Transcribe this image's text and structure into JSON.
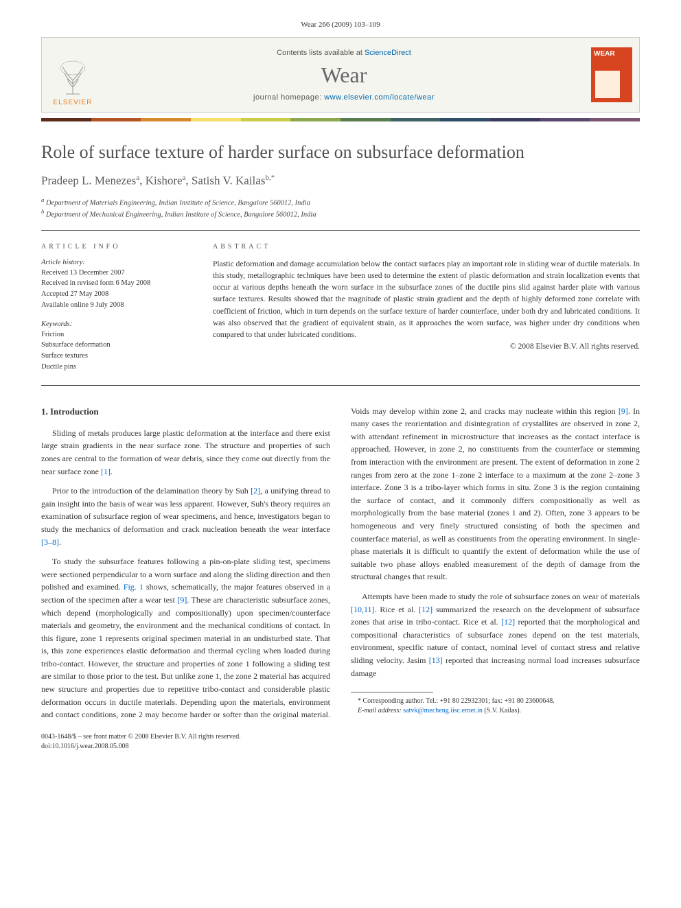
{
  "header": {
    "citation": "Wear 266 (2009) 103–109"
  },
  "banner": {
    "publisher": "ELSEVIER",
    "contents_prefix": "Contents lists available at ",
    "contents_link": "ScienceDirect",
    "journal": "Wear",
    "homepage_prefix": "journal homepage: ",
    "homepage_url": "www.elsevier.com/locate/wear",
    "cover_label": "WEAR"
  },
  "colorbar": [
    "#5b2c1a",
    "#b45523",
    "#d68a2e",
    "#f4e06a",
    "#cacc4a",
    "#8ea84e",
    "#5a7d4f",
    "#406266",
    "#334d66",
    "#3a3d5c",
    "#5a4a6d",
    "#7a5571"
  ],
  "article": {
    "title": "Role of surface texture of harder surface on subsurface deformation",
    "authors_html": "Pradeep L. Menezes<sup>a</sup>, Kishore<sup>a</sup>, Satish V. Kailas<sup>b,*</sup>",
    "affiliations": [
      "a Department of Materials Engineering, Indian Institute of Science, Bangalore 560012, India",
      "b Department of Mechanical Engineering, Indian Institute of Science, Bangalore 560012, India"
    ]
  },
  "info": {
    "label": "ARTICLE INFO",
    "history_title": "Article history:",
    "history": [
      "Received 13 December 2007",
      "Received in revised form 6 May 2008",
      "Accepted 27 May 2008",
      "Available online 9 July 2008"
    ],
    "keywords_title": "Keywords:",
    "keywords": [
      "Friction",
      "Subsurface deformation",
      "Surface textures",
      "Ductile pins"
    ]
  },
  "abstract": {
    "label": "ABSTRACT",
    "text": "Plastic deformation and damage accumulation below the contact surfaces play an important role in sliding wear of ductile materials. In this study, metallographic techniques have been used to determine the extent of plastic deformation and strain localization events that occur at various depths beneath the worn surface in the subsurface zones of the ductile pins slid against harder plate with various surface textures. Results showed that the magnitude of plastic strain gradient and the depth of highly deformed zone correlate with coefficient of friction, which in turn depends on the surface texture of harder counterface, under both dry and lubricated conditions. It was also observed that the gradient of equivalent strain, as it approaches the worn surface, was higher under dry conditions when compared to that under lubricated conditions.",
    "copyright": "© 2008 Elsevier B.V. All rights reserved."
  },
  "body": {
    "section1_title": "1. Introduction",
    "p1": "Sliding of metals produces large plastic deformation at the interface and there exist large strain gradients in the near surface zone. The structure and properties of such zones are central to the formation of wear debris, since they come out directly from the near surface zone ",
    "p1_ref": "[1]",
    "p1_suffix": ".",
    "p2_a": "Prior to the introduction of the delamination theory by Suh ",
    "p2_ref1": "[2]",
    "p2_b": ", a unifying thread to gain insight into the basis of wear was less apparent. However, Suh's theory requires an examination of subsurface region of wear specimens, and hence, investigators began to study the mechanics of deformation and crack nucleation beneath the wear interface ",
    "p2_ref2": "[3–8]",
    "p2_c": ".",
    "p3_a": "To study the subsurface features following a pin-on-plate sliding test, specimens were sectioned perpendicular to a worn surface and along the sliding direction and then polished and examined. ",
    "p3_fig": "Fig. 1",
    "p3_b": " shows, schematically, the major features observed in a section of the specimen after a wear test ",
    "p3_ref1": "[9]",
    "p3_c": ". These are characteristic subsurface zones, which depend (morphologically and compositionally) upon specimen/counterface materials and geometry, the environment and the mechanical conditions of contact. In this figure, zone 1 represents original specimen material in an undisturbed state. That is, this zone experiences elastic deformation and thermal cycling when loaded during tribo-contact. However, the structure and properties of zone 1 following a sliding test are similar to those prior to the test. But unlike zone 1, the zone 2 material has acquired new structure and properties due to repetitive tribo-contact and considerable plastic deformation occurs in ductile materials. Depending upon the materials, environment and contact conditions, zone 2 may become harder or softer than the original material. Voids may develop within zone 2, and cracks may nucleate within this region ",
    "p3_ref2": "[9]",
    "p3_d": ". In many cases the reorientation and disintegration of crystallites are observed in zone 2, with attendant refinement in microstructure that increases as the contact interface is approached. However, in zone 2, no constituents from the counterface or stemming from interaction with the environment are present. The extent of deformation in zone 2 ranges from zero at the zone 1–zone 2 interface to a maximum at the zone 2–zone 3 interface. Zone 3 is a tribo-layer which forms in situ. Zone 3 is the region containing the surface of contact, and it commonly differs compositionally as well as morphologically from the base material (zones 1 and 2). Often, zone 3 appears to be homogeneous and very finely structured consisting of both the specimen and counterface material, as well as constituents from the operating environment. In single-phase materials it is difficult to quantify the extent of deformation while the use of suitable two phase alloys enabled measurement of the depth of damage from the structural changes that result.",
    "p4_a": "Attempts have been made to study the role of subsurface zones on wear of materials ",
    "p4_ref1": "[10,11]",
    "p4_b": ". Rice et al. ",
    "p4_ref2": "[12]",
    "p4_c": " summarized the research on the development of subsurface zones that arise in tribo-contact. Rice et al. ",
    "p4_ref3": "[12]",
    "p4_d": " reported that the morphological and compositional characteristics of subsurface zones depend on the test materials, environment, specific nature of contact, nominal level of contact stress and relative sliding velocity. Jasim ",
    "p4_ref4": "[13]",
    "p4_e": " reported that increasing normal load increases subsurface damage"
  },
  "footnote": {
    "corr": "* Corresponding author. Tel.: +91 80 22932301; fax: +91 80 23600648.",
    "email_label": "E-mail address: ",
    "email": "satvk@mecheng.iisc.ernet.in",
    "email_suffix": " (S.V. Kailas)."
  },
  "bottom": {
    "line1": "0043-1648/$ – see front matter © 2008 Elsevier B.V. All rights reserved.",
    "line2": "doi:10.1016/j.wear.2008.05.008"
  }
}
